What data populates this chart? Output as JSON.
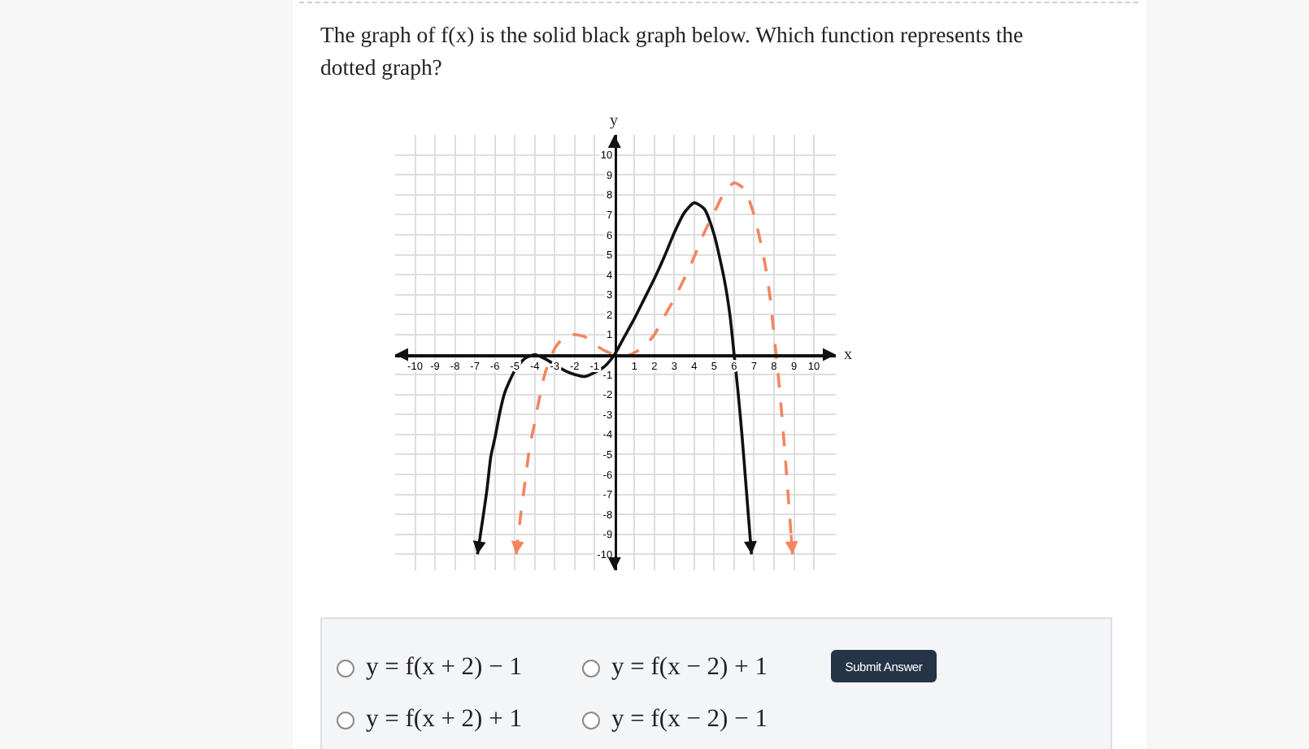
{
  "chart_data": {
    "type": "line",
    "title": "The graph of f(x) is the solid black graph below. Which function represents the dotted graph?",
    "xlabel": "x",
    "ylabel": "y",
    "xlim": [
      -11,
      11.1
    ],
    "ylim": [
      -10.8,
      11
    ],
    "xticks": [
      -10,
      -9,
      -8,
      -7,
      -6,
      -5,
      -4,
      -3,
      -2,
      -1,
      1,
      2,
      3,
      4,
      5,
      6,
      7,
      8,
      9,
      10
    ],
    "yticks": [
      -10,
      -9,
      -8,
      -7,
      -6,
      -5,
      -4,
      -3,
      -2,
      -1,
      1,
      2,
      3,
      4,
      5,
      6,
      7,
      8,
      9,
      10
    ],
    "grid": true,
    "series": [
      {
        "color": "#111111",
        "line_style": "solid",
        "x": [
          -6.87,
          -6.6,
          -6.4,
          -6.2,
          -6,
          -5.75,
          -5.5,
          -5,
          -4.5,
          -4,
          -3.5,
          -3,
          -2.5,
          -2,
          -1.5,
          -1,
          -0.5,
          0,
          0.5,
          1,
          1.5,
          2,
          2.5,
          3,
          3.5,
          4,
          4.5,
          5,
          5.5,
          5.8,
          6,
          6.2,
          6.4,
          6.6,
          6.87
        ],
        "values": [
          -10,
          -8.2,
          -6.8,
          -5.1,
          -4.2,
          -2.9,
          -1.9,
          -0.8,
          -0.2,
          0,
          -0.2,
          -0.5,
          -0.8,
          -1,
          -1.1,
          -0.9,
          -0.6,
          0,
          0.9,
          1.8,
          2.8,
          3.8,
          4.9,
          6.1,
          7.1,
          7.6,
          7.3,
          6,
          3.8,
          1.9,
          0,
          -1.9,
          -4.1,
          -6.6,
          -10
        ]
      },
      {
        "color": "#f4845f",
        "line_style": "dashed",
        "x": [
          -4.93,
          -4.7,
          -4.5,
          -4.25,
          -4,
          -3.75,
          -3.5,
          -3,
          -2.5,
          -2,
          -1.5,
          -1,
          -0.5,
          0,
          0.5,
          1,
          1.5,
          2,
          2.5,
          3,
          3.5,
          4,
          4.5,
          5,
          5.5,
          6,
          6.5,
          7,
          7.5,
          7.8,
          8,
          8.2,
          8.4,
          8.6,
          8.93
        ],
        "values": [
          -10,
          -8,
          -6.5,
          -4.6,
          -3.4,
          -2.1,
          -1,
          0.3,
          0.9,
          1,
          0.9,
          0.5,
          0.2,
          0,
          -0.1,
          0.1,
          0.4,
          1,
          1.9,
          2.8,
          3.8,
          4.9,
          6.1,
          7.1,
          8.1,
          8.6,
          8.3,
          7,
          4.8,
          2.9,
          1,
          -0.9,
          -3.1,
          -5.6,
          -10
        ]
      }
    ],
    "annotations": [
      "y = f(x + 2) − 1",
      "y = f(x − 2) + 1",
      "y = f(x + 2) + 1",
      "y = f(x − 2) − 1",
      "Submit Answer"
    ]
  }
}
